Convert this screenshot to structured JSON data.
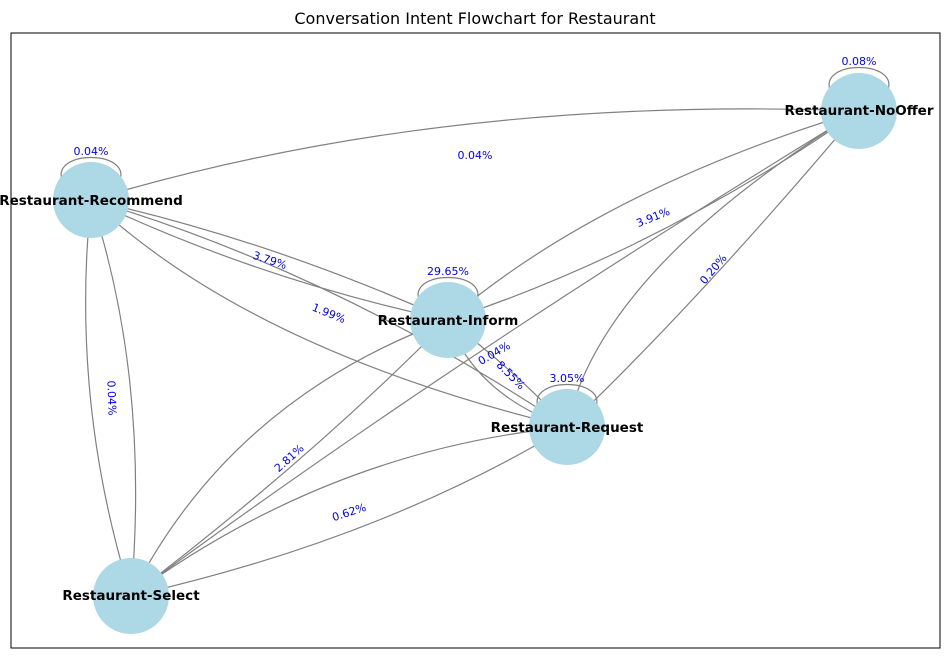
{
  "title": "Conversation Intent Flowchart for Restaurant",
  "colors": {
    "node_fill": "#add8e6",
    "edge_stroke": "#808080",
    "edge_label": "#0000ee"
  },
  "nodes": {
    "recommend": "Restaurant-Recommend",
    "noOffer": "Restaurant-NoOffer",
    "inform": "Restaurant-Inform",
    "request": "Restaurant-Request",
    "select": "Restaurant-Select"
  },
  "edge_labels": {
    "recommend_noOffer": "0.04%",
    "noOffer_inform": "3.91%",
    "noOffer_request": "0.20%",
    "recommend_inform": "3.79%",
    "recommend_request": "1.99%",
    "recommend_select": "0.04%",
    "inform_request": "8.55%",
    "request_inform": "0.04%",
    "inform_select": "2.81%",
    "request_select": "0.62%",
    "loop_recommend": "0.04%",
    "loop_noOffer": "0.08%",
    "loop_inform": "29.65%",
    "loop_request": "3.05%"
  }
}
